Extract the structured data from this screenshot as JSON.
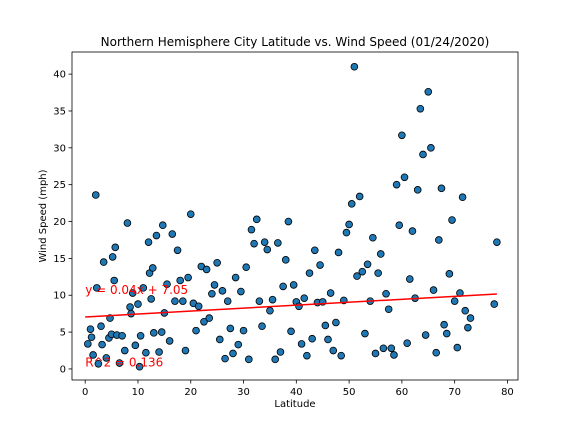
{
  "chart_data": {
    "type": "scatter",
    "title": "Northern Hemisphere City Latitude vs. Wind Speed (01/24/2020)",
    "xlabel": "Latitude",
    "ylabel": "Wind Speed (mph)",
    "xlim": [
      -2.5,
      82
    ],
    "ylim": [
      -1.5,
      43
    ],
    "x_ticks": [
      0,
      10,
      20,
      30,
      40,
      50,
      60,
      70,
      80
    ],
    "y_ticks": [
      0,
      5,
      10,
      15,
      20,
      25,
      30,
      35,
      40
    ],
    "grid": false,
    "marker_color": "#1f77b4",
    "marker_edge_color": "#000000",
    "line_color": "#ff0000",
    "regression": {
      "slope": 0.04,
      "intercept": 7.05,
      "x_range": [
        0,
        78
      ]
    },
    "annotations": [
      {
        "text": "y = 0.04x + 7.05",
        "x": 0,
        "y": 10.2
      },
      {
        "text": "R^2 = 0.136",
        "x": 0,
        "y": 0.3
      }
    ],
    "points": [
      [
        0.5,
        3.4
      ],
      [
        1,
        5.4
      ],
      [
        1.2,
        4.3
      ],
      [
        1.5,
        1.9
      ],
      [
        2,
        23.6
      ],
      [
        2.2,
        11
      ],
      [
        2.5,
        0.7
      ],
      [
        3,
        5.8
      ],
      [
        3.2,
        3.3
      ],
      [
        3.5,
        14.5
      ],
      [
        4,
        1.5
      ],
      [
        4.5,
        4.2
      ],
      [
        4.7,
        6.9
      ],
      [
        5,
        4.7
      ],
      [
        5.2,
        15.2
      ],
      [
        5.5,
        12
      ],
      [
        5.7,
        16.5
      ],
      [
        6,
        4.6
      ],
      [
        6.5,
        0.8
      ],
      [
        7,
        4.5
      ],
      [
        7.5,
        2.5
      ],
      [
        8,
        19.8
      ],
      [
        8.5,
        8.4
      ],
      [
        8.7,
        7.5
      ],
      [
        9,
        10.3
      ],
      [
        9.5,
        3.2
      ],
      [
        10,
        8.8
      ],
      [
        10.3,
        0.3
      ],
      [
        10.5,
        4.5
      ],
      [
        11,
        11
      ],
      [
        11.5,
        2.2
      ],
      [
        12,
        17.2
      ],
      [
        12.2,
        13
      ],
      [
        12.5,
        9.5
      ],
      [
        12.8,
        13.7
      ],
      [
        13,
        4.9
      ],
      [
        13.5,
        18.1
      ],
      [
        14,
        2.3
      ],
      [
        14.5,
        5
      ],
      [
        14.7,
        19.5
      ],
      [
        15,
        7.6
      ],
      [
        15.5,
        11.5
      ],
      [
        16,
        3.8
      ],
      [
        16.5,
        18.3
      ],
      [
        17,
        9.2
      ],
      [
        17.5,
        16.1
      ],
      [
        18,
        12
      ],
      [
        18.5,
        9.2
      ],
      [
        19,
        2.5
      ],
      [
        19.5,
        12.4
      ],
      [
        20,
        21
      ],
      [
        20.5,
        8.9
      ],
      [
        21,
        5.2
      ],
      [
        21.5,
        8.5
      ],
      [
        22,
        13.9
      ],
      [
        22.5,
        6.4
      ],
      [
        23,
        13.5
      ],
      [
        23.5,
        6.9
      ],
      [
        24,
        10.2
      ],
      [
        24.5,
        11.4
      ],
      [
        25,
        14.4
      ],
      [
        25.5,
        4
      ],
      [
        26,
        10.6
      ],
      [
        26.5,
        1.4
      ],
      [
        27,
        9.2
      ],
      [
        27.5,
        5.5
      ],
      [
        28,
        2.1
      ],
      [
        28.5,
        12.4
      ],
      [
        29,
        3.3
      ],
      [
        29.5,
        10.5
      ],
      [
        30,
        5.2
      ],
      [
        30.5,
        13.8
      ],
      [
        31,
        1.3
      ],
      [
        31.5,
        18.9
      ],
      [
        32,
        17
      ],
      [
        32.5,
        20.3
      ],
      [
        33,
        9.2
      ],
      [
        33.5,
        5.8
      ],
      [
        34,
        17.2
      ],
      [
        34.5,
        16.2
      ],
      [
        35,
        7.9
      ],
      [
        35.5,
        9.4
      ],
      [
        36,
        1.3
      ],
      [
        36.5,
        17.1
      ],
      [
        37,
        2.3
      ],
      [
        37.5,
        11.2
      ],
      [
        38,
        14.8
      ],
      [
        38.5,
        20
      ],
      [
        39,
        5.1
      ],
      [
        39.5,
        11.4
      ],
      [
        40,
        9.1
      ],
      [
        40.5,
        8.5
      ],
      [
        41,
        3.4
      ],
      [
        41.5,
        9.6
      ],
      [
        42,
        1.8
      ],
      [
        42.5,
        13
      ],
      [
        43,
        4.1
      ],
      [
        43.5,
        16.1
      ],
      [
        44,
        9
      ],
      [
        44.5,
        14.1
      ],
      [
        45,
        9.1
      ],
      [
        45.5,
        5.9
      ],
      [
        46,
        4
      ],
      [
        46.5,
        10.3
      ],
      [
        47,
        2.5
      ],
      [
        47.5,
        6.3
      ],
      [
        48,
        15.8
      ],
      [
        48.5,
        1.8
      ],
      [
        49,
        9.3
      ],
      [
        49.5,
        18.5
      ],
      [
        50,
        19.6
      ],
      [
        50.5,
        22.4
      ],
      [
        51,
        41
      ],
      [
        51.5,
        12.6
      ],
      [
        52,
        23.4
      ],
      [
        52.5,
        13.2
      ],
      [
        53,
        4.8
      ],
      [
        53.5,
        14.2
      ],
      [
        54,
        9.2
      ],
      [
        54.5,
        17.8
      ],
      [
        55,
        2.1
      ],
      [
        55.5,
        13
      ],
      [
        56,
        15.6
      ],
      [
        56.5,
        2.8
      ],
      [
        57,
        10.2
      ],
      [
        57.5,
        8.1
      ],
      [
        58,
        2.8
      ],
      [
        58.5,
        1.9
      ],
      [
        59,
        25
      ],
      [
        59.5,
        19.5
      ],
      [
        60,
        31.7
      ],
      [
        60.5,
        26
      ],
      [
        61,
        3.5
      ],
      [
        61.5,
        12.2
      ],
      [
        62,
        18.7
      ],
      [
        62.5,
        9.6
      ],
      [
        63,
        24.3
      ],
      [
        63.5,
        35.3
      ],
      [
        64,
        29.1
      ],
      [
        64.5,
        4.6
      ],
      [
        65,
        37.6
      ],
      [
        65.5,
        30
      ],
      [
        66,
        10.7
      ],
      [
        66.5,
        2.2
      ],
      [
        67,
        17.5
      ],
      [
        67.5,
        24.5
      ],
      [
        68,
        6
      ],
      [
        68.5,
        4.8
      ],
      [
        69,
        12.9
      ],
      [
        69.5,
        20.2
      ],
      [
        70,
        9.2
      ],
      [
        70.5,
        2.9
      ],
      [
        71,
        10.3
      ],
      [
        71.5,
        23.3
      ],
      [
        72,
        7.9
      ],
      [
        72.5,
        5.6
      ],
      [
        73,
        6.9
      ],
      [
        77.5,
        8.8
      ],
      [
        78,
        17.2
      ]
    ]
  }
}
